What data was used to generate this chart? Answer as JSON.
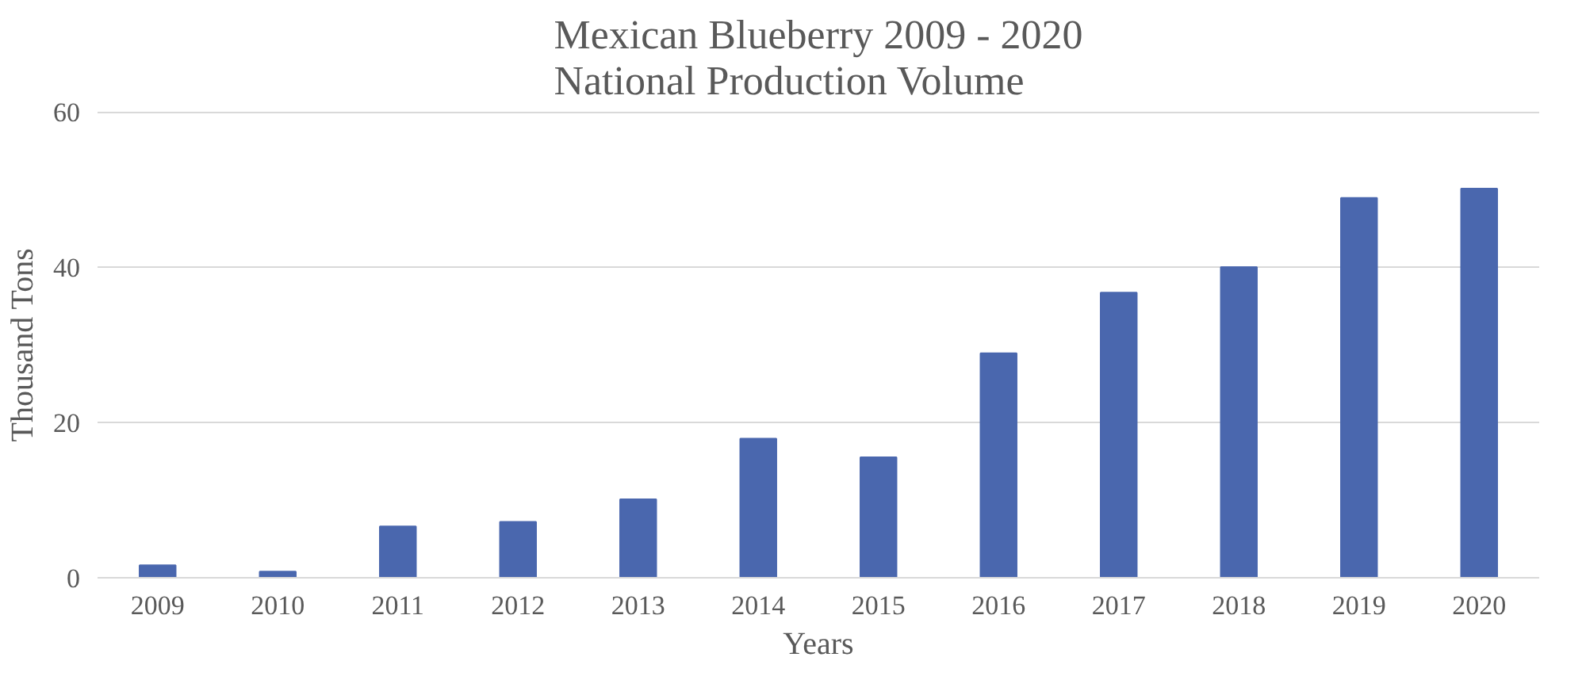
{
  "chart_data": {
    "type": "bar",
    "title": "Mexican Blueberry 2009 - 2020\nNational Production Volume",
    "xlabel": "Years",
    "ylabel": "Thousand Tons",
    "categories": [
      "2009",
      "2010",
      "2011",
      "2012",
      "2013",
      "2014",
      "2015",
      "2016",
      "2017",
      "2018",
      "2019",
      "2020"
    ],
    "values": [
      1.6,
      0.8,
      6.6,
      7.2,
      10.1,
      17.9,
      15.5,
      28.9,
      36.7,
      40.0,
      48.9,
      50.1
    ],
    "color": "#4a67ae",
    "ylim": [
      0,
      60
    ],
    "yticks": [
      0,
      20,
      40,
      60
    ],
    "grid": "y"
  }
}
